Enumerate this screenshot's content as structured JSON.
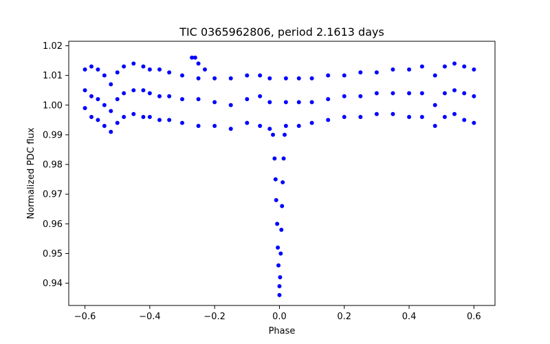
{
  "chart_data": {
    "type": "scatter",
    "title": "TIC 0365962806, period 2.1613 days",
    "xlabel": "Phase",
    "ylabel": "Normalized PDC flux",
    "xlim": [
      -0.65,
      0.665
    ],
    "ylim": [
      0.9325,
      1.0215
    ],
    "xticks": [
      -0.6,
      -0.4,
      -0.2,
      0.0,
      0.2,
      0.4,
      0.6
    ],
    "xtick_labels": [
      "−0.6",
      "−0.4",
      "−0.2",
      "0.0",
      "0.2",
      "0.4",
      "0.6"
    ],
    "yticks": [
      0.94,
      0.95,
      0.96,
      0.97,
      0.98,
      0.99,
      1.0,
      1.01,
      1.02
    ],
    "ytick_labels": [
      "0.94",
      "0.95",
      "0.96",
      "0.97",
      "0.98",
      "0.99",
      "1.00",
      "1.01",
      "1.02"
    ],
    "grid": false,
    "marker_color": "#0000ff",
    "series": [
      {
        "points": [
          [
            -0.6,
            1.012
          ],
          [
            -0.6,
            1.005
          ],
          [
            -0.6,
            0.999
          ],
          [
            -0.58,
            1.013
          ],
          [
            -0.58,
            1.003
          ],
          [
            -0.58,
            0.996
          ],
          [
            -0.56,
            1.012
          ],
          [
            -0.56,
            1.002
          ],
          [
            -0.56,
            0.995
          ],
          [
            -0.54,
            1.01
          ],
          [
            -0.54,
            1.0
          ],
          [
            -0.54,
            0.993
          ],
          [
            -0.52,
            1.007
          ],
          [
            -0.52,
            0.998
          ],
          [
            -0.52,
            0.991
          ],
          [
            -0.5,
            1.011
          ],
          [
            -0.5,
            1.002
          ],
          [
            -0.5,
            0.994
          ],
          [
            -0.48,
            1.013
          ],
          [
            -0.48,
            1.004
          ],
          [
            -0.48,
            0.996
          ],
          [
            -0.45,
            1.014
          ],
          [
            -0.45,
            1.005
          ],
          [
            -0.45,
            0.997
          ],
          [
            -0.42,
            1.013
          ],
          [
            -0.42,
            1.005
          ],
          [
            -0.42,
            0.996
          ],
          [
            -0.4,
            1.012
          ],
          [
            -0.4,
            1.004
          ],
          [
            -0.4,
            0.996
          ],
          [
            -0.37,
            1.012
          ],
          [
            -0.37,
            1.003
          ],
          [
            -0.37,
            0.995
          ],
          [
            -0.34,
            1.011
          ],
          [
            -0.34,
            1.003
          ],
          [
            -0.34,
            0.995
          ],
          [
            -0.3,
            1.01
          ],
          [
            -0.3,
            1.002
          ],
          [
            -0.3,
            0.994
          ],
          [
            -0.27,
            1.016
          ],
          [
            -0.26,
            1.016
          ],
          [
            -0.25,
            1.014
          ],
          [
            -0.23,
            1.012
          ],
          [
            -0.25,
            1.009
          ],
          [
            -0.25,
            1.002
          ],
          [
            -0.25,
            0.993
          ],
          [
            -0.2,
            1.009
          ],
          [
            -0.2,
            1.001
          ],
          [
            -0.2,
            0.993
          ],
          [
            -0.15,
            1.009
          ],
          [
            -0.15,
            1.0
          ],
          [
            -0.15,
            0.992
          ],
          [
            -0.1,
            1.01
          ],
          [
            -0.1,
            1.002
          ],
          [
            -0.1,
            0.994
          ],
          [
            -0.06,
            1.01
          ],
          [
            -0.06,
            1.003
          ],
          [
            -0.06,
            0.993
          ],
          [
            -0.03,
            1.009
          ],
          [
            -0.03,
            1.001
          ],
          [
            -0.03,
            0.992
          ],
          [
            -0.02,
            0.99
          ],
          [
            -0.015,
            0.982
          ],
          [
            -0.012,
            0.975
          ],
          [
            -0.01,
            0.968
          ],
          [
            -0.007,
            0.96
          ],
          [
            -0.005,
            0.952
          ],
          [
            -0.003,
            0.946
          ],
          [
            0.0,
            0.939
          ],
          [
            0.0,
            0.936
          ],
          [
            0.002,
            0.942
          ],
          [
            0.004,
            0.95
          ],
          [
            0.006,
            0.958
          ],
          [
            0.008,
            0.966
          ],
          [
            0.01,
            0.974
          ],
          [
            0.013,
            0.982
          ],
          [
            0.016,
            0.99
          ],
          [
            0.02,
            1.009
          ],
          [
            0.02,
            1.001
          ],
          [
            0.02,
            0.993
          ],
          [
            0.06,
            1.009
          ],
          [
            0.06,
            1.001
          ],
          [
            0.06,
            0.993
          ],
          [
            0.1,
            1.009
          ],
          [
            0.1,
            1.001
          ],
          [
            0.1,
            0.994
          ],
          [
            0.15,
            1.01
          ],
          [
            0.15,
            1.002
          ],
          [
            0.15,
            0.995
          ],
          [
            0.2,
            1.01
          ],
          [
            0.2,
            1.003
          ],
          [
            0.2,
            0.996
          ],
          [
            0.25,
            1.011
          ],
          [
            0.25,
            1.003
          ],
          [
            0.25,
            0.996
          ],
          [
            0.3,
            1.011
          ],
          [
            0.3,
            1.004
          ],
          [
            0.3,
            0.997
          ],
          [
            0.35,
            1.012
          ],
          [
            0.35,
            1.004
          ],
          [
            0.35,
            0.997
          ],
          [
            0.4,
            1.012
          ],
          [
            0.4,
            1.004
          ],
          [
            0.4,
            0.996
          ],
          [
            0.44,
            1.013
          ],
          [
            0.44,
            1.004
          ],
          [
            0.44,
            0.996
          ],
          [
            0.48,
            1.01
          ],
          [
            0.48,
            1.0
          ],
          [
            0.48,
            0.993
          ],
          [
            0.51,
            1.013
          ],
          [
            0.51,
            1.004
          ],
          [
            0.51,
            0.996
          ],
          [
            0.54,
            1.014
          ],
          [
            0.54,
            1.005
          ],
          [
            0.54,
            0.997
          ],
          [
            0.57,
            1.013
          ],
          [
            0.57,
            1.004
          ],
          [
            0.57,
            0.995
          ],
          [
            0.6,
            1.012
          ],
          [
            0.6,
            1.003
          ],
          [
            0.6,
            0.994
          ]
        ]
      }
    ]
  }
}
